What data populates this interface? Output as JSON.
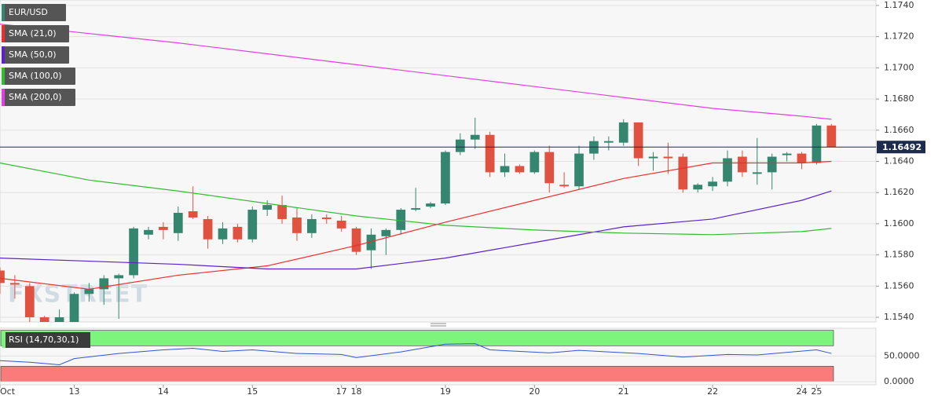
{
  "chart_data": {
    "type": "candlestick",
    "symbol": "EUR/USD",
    "watermark": "FXSTREET",
    "current_price": 1.16492,
    "current_color": "#1f2b4d",
    "up_color": "#35866e",
    "down_color": "#e0513f",
    "grid": true,
    "xlim": [
      0,
      59
    ],
    "ylim": [
      1.1537,
      1.17435
    ],
    "yticks": [
      {
        "value": 1.174,
        "label": "1.1740"
      },
      {
        "value": 1.172,
        "label": "1.1720"
      },
      {
        "value": 1.17,
        "label": "1.1700"
      },
      {
        "value": 1.168,
        "label": "1.1680"
      },
      {
        "value": 1.166,
        "label": "1.1660"
      },
      {
        "value": 1.164,
        "label": "1.1640"
      },
      {
        "value": 1.162,
        "label": "1.1620"
      },
      {
        "value": 1.16,
        "label": "1.1600"
      },
      {
        "value": 1.158,
        "label": "1.1580"
      },
      {
        "value": 1.156,
        "label": "1.1560"
      },
      {
        "value": 1.154,
        "label": "1.1540"
      }
    ],
    "xticks": [
      {
        "value": 0,
        "label": "Oct"
      },
      {
        "value": 5,
        "label": "13"
      },
      {
        "value": 11,
        "label": "14"
      },
      {
        "value": 17,
        "label": "15"
      },
      {
        "value": 23,
        "label": "17"
      },
      {
        "value": 24,
        "label": "18"
      },
      {
        "value": 30,
        "label": "19"
      },
      {
        "value": 36,
        "label": "20"
      },
      {
        "value": 42,
        "label": "21"
      },
      {
        "value": 48,
        "label": "22"
      },
      {
        "value": 54,
        "label": "24"
      },
      {
        "value": 55,
        "label": "25"
      }
    ],
    "open": [
      1.157,
      1.1562,
      1.156,
      1.154,
      1.1536,
      1.1535,
      1.1555,
      1.1558,
      1.1565,
      1.1567,
      1.1593,
      1.1598,
      1.1594,
      1.1608,
      1.1603,
      1.159,
      1.1598,
      1.159,
      1.1609,
      1.1612,
      1.1604,
      1.1594,
      1.1604,
      1.1602,
      1.1597,
      1.1583,
      1.1592,
      1.1596,
      1.1609,
      1.1611,
      1.1613,
      1.1646,
      1.1654,
      1.1657,
      1.1633,
      1.1637,
      1.1633,
      1.1646,
      1.1625,
      1.1624,
      1.1645,
      1.1652,
      1.1652,
      1.1665,
      1.1642,
      1.1643,
      1.1643,
      1.1622,
      1.1624,
      1.1627,
      1.1643,
      1.1632,
      1.1633,
      1.1644,
      1.1645,
      1.1639,
      1.1663
    ],
    "high": [
      1.1572,
      1.1567,
      1.1562,
      1.1541,
      1.1545,
      1.1556,
      1.1562,
      1.1567,
      1.1568,
      1.1598,
      1.1598,
      1.1601,
      1.1611,
      1.1624,
      1.1605,
      1.1601,
      1.16,
      1.1611,
      1.1615,
      1.1618,
      1.161,
      1.1606,
      1.1606,
      1.1605,
      1.1598,
      1.1597,
      1.1597,
      1.161,
      1.1623,
      1.1614,
      1.1647,
      1.1658,
      1.1668,
      1.1659,
      1.1645,
      1.1638,
      1.1647,
      1.165,
      1.1633,
      1.165,
      1.1656,
      1.1656,
      1.1667,
      1.1665,
      1.1646,
      1.1652,
      1.1645,
      1.1626,
      1.163,
      1.1647,
      1.1647,
      1.1655,
      1.1645,
      1.1646,
      1.1646,
      1.1664,
      1.1664
    ],
    "low": [
      1.1555,
      1.1552,
      1.1535,
      1.153,
      1.153,
      1.1533,
      1.155,
      1.1548,
      1.1539,
      1.1565,
      1.159,
      1.159,
      1.1589,
      1.1603,
      1.1584,
      1.1587,
      1.1588,
      1.1588,
      1.1605,
      1.16,
      1.1589,
      1.1591,
      1.16,
      1.1595,
      1.158,
      1.1571,
      1.158,
      1.1593,
      1.1608,
      1.161,
      1.1612,
      1.1644,
      1.1648,
      1.163,
      1.163,
      1.1632,
      1.1632,
      1.162,
      1.1623,
      1.1622,
      1.1641,
      1.1647,
      1.165,
      1.1637,
      1.1634,
      1.1632,
      1.162,
      1.162,
      1.1621,
      1.1624,
      1.163,
      1.1625,
      1.1622,
      1.164,
      1.1635,
      1.1638,
      1.1649
    ],
    "close": [
      1.1562,
      1.1561,
      1.154,
      1.1536,
      1.154,
      1.1555,
      1.1558,
      1.1565,
      1.1567,
      1.1597,
      1.1596,
      1.1596,
      1.1607,
      1.1604,
      1.159,
      1.1597,
      1.159,
      1.1609,
      1.1612,
      1.1603,
      1.1594,
      1.1603,
      1.1603,
      1.1597,
      1.1582,
      1.1593,
      1.1596,
      1.1609,
      1.161,
      1.1613,
      1.1646,
      1.1654,
      1.1657,
      1.1633,
      1.1637,
      1.1633,
      1.1646,
      1.1626,
      1.1624,
      1.1645,
      1.1653,
      1.1653,
      1.1665,
      1.1642,
      1.1643,
      1.1642,
      1.1622,
      1.1625,
      1.1627,
      1.1642,
      1.1633,
      1.1633,
      1.1643,
      1.1645,
      1.1639,
      1.1663,
      1.16492
    ],
    "series": [
      {
        "name": "SMA (21,0)",
        "color": "#e8302e",
        "x": [
          0,
          6,
          12,
          18,
          24,
          30,
          36,
          42,
          48,
          54,
          56
        ],
        "values": [
          1.1565,
          1.1558,
          1.1567,
          1.1573,
          1.1586,
          1.1601,
          1.1615,
          1.1629,
          1.1639,
          1.1639,
          1.164
        ]
      },
      {
        "name": "SMA (50,0)",
        "color": "#5a22c8",
        "x": [
          0,
          6,
          12,
          18,
          24,
          30,
          36,
          42,
          48,
          54,
          56
        ],
        "values": [
          1.1578,
          1.1576,
          1.1574,
          1.1571,
          1.1571,
          1.1578,
          1.1588,
          1.1598,
          1.1603,
          1.1615,
          1.1621
        ]
      },
      {
        "name": "SMA (100,0)",
        "color": "#33bb33",
        "x": [
          0,
          6,
          12,
          18,
          24,
          30,
          36,
          42,
          48,
          54,
          56
        ],
        "values": [
          1.1639,
          1.1628,
          1.1621,
          1.1613,
          1.1605,
          1.1599,
          1.1596,
          1.1594,
          1.1593,
          1.1595,
          1.1597
        ]
      },
      {
        "name": "SMA (200,0)",
        "color": "#e040e0",
        "x": [
          0,
          6,
          12,
          18,
          24,
          30,
          36,
          42,
          48,
          54,
          56
        ],
        "values": [
          1.1728,
          1.1722,
          1.1716,
          1.1709,
          1.1702,
          1.1695,
          1.1688,
          1.1681,
          1.1674,
          1.1669,
          1.1667
        ]
      }
    ],
    "rsi": {
      "name": "RSI (14,70,30,1)",
      "color": "#3355cc",
      "x": [
        0,
        2,
        4,
        5,
        8,
        11,
        13,
        15,
        17,
        20,
        23,
        24,
        27,
        30,
        32,
        33,
        37,
        39,
        43,
        46,
        49,
        51,
        55,
        56
      ],
      "values": [
        41,
        38,
        33,
        45,
        55,
        62,
        65,
        59,
        62,
        55,
        53,
        47,
        58,
        73,
        74,
        62,
        56,
        61,
        55,
        48,
        53,
        52,
        62,
        55
      ],
      "ylim": [
        -6,
        104
      ],
      "bounds": [
        0,
        100
      ],
      "overbought": 70,
      "oversold": 30,
      "upper_color": "#7df57d",
      "lower_color": "#fb7a7a",
      "yticks": [
        {
          "value": 50,
          "label": "50.0000"
        },
        {
          "value": 0,
          "label": "0.0000"
        }
      ]
    }
  }
}
